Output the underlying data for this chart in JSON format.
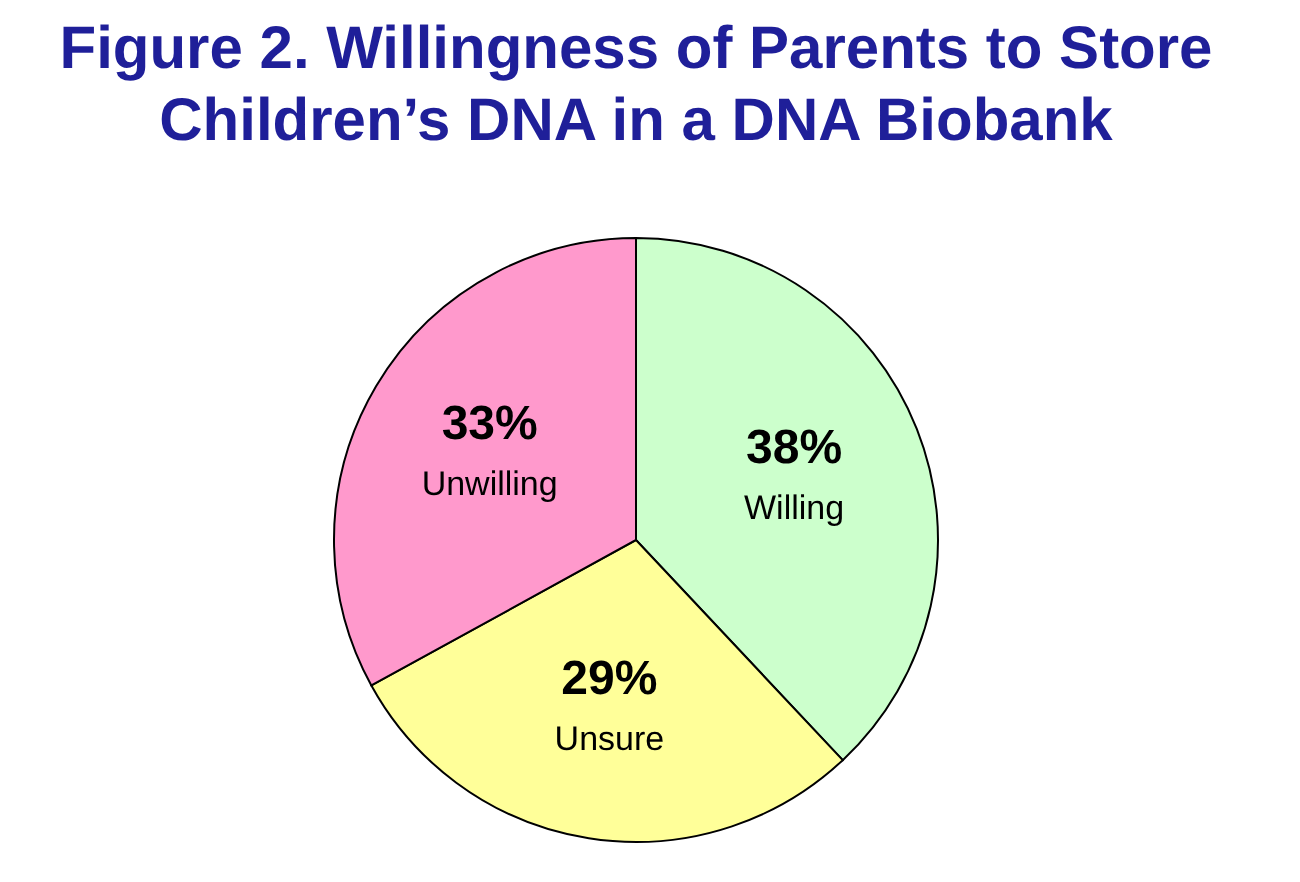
{
  "chart_data": {
    "type": "pie",
    "title": "Figure 2. Willingness of Parents to Store\nChildren’s DNA in a DNA Biobank",
    "categories": [
      "Willing",
      "Unsure",
      "Unwilling"
    ],
    "values": [
      38,
      29,
      33
    ],
    "colors": [
      "#ccffcc",
      "#ffff99",
      "#ff99cc"
    ],
    "value_labels": [
      "38%",
      "29%",
      "33%"
    ],
    "legend": false
  }
}
